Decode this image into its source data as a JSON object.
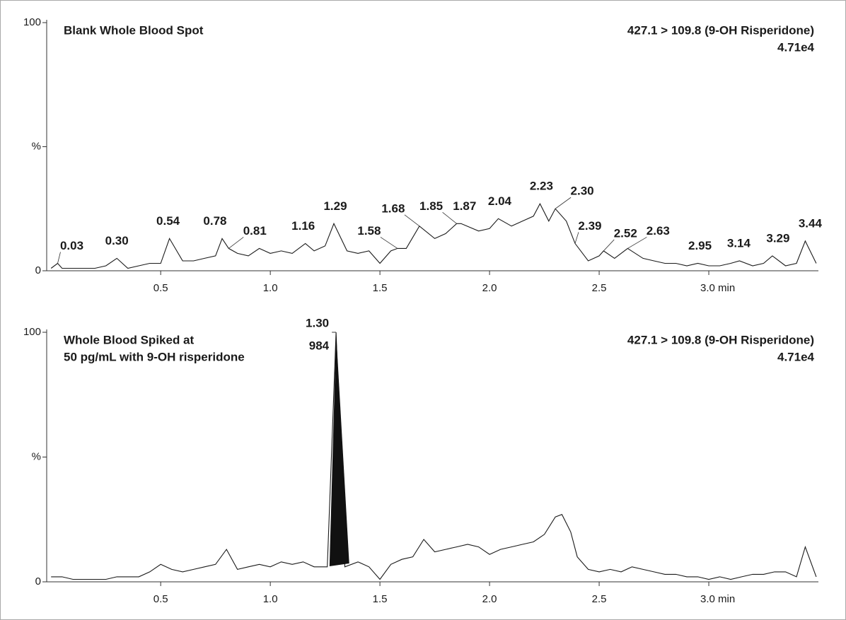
{
  "chart_data": [
    {
      "type": "line",
      "title": [
        "Blank Whole Blood Spot"
      ],
      "transition": "427.1 > 109.8 (9-OH Risperidone)",
      "intensity": "4.71e4",
      "xlim": [
        -0.02,
        3.5
      ],
      "ylim": [
        0,
        100
      ],
      "xticks": [
        0.5,
        {
          "value": 1,
          "label": "1.0"
        },
        1.5,
        {
          "value": 2,
          "label": "2.0"
        },
        2.5,
        {
          "value": 3,
          "label": "3.0 min"
        }
      ],
      "yticks": [
        0,
        {
          "value": 50,
          "label": "%"
        },
        100
      ],
      "color": "#1a1a1a",
      "label_color": "#1f7a99",
      "x": [
        0,
        0.03,
        0.05,
        0.1,
        0.15,
        0.2,
        0.25,
        0.3,
        0.35,
        0.4,
        0.45,
        0.5,
        0.54,
        0.6,
        0.65,
        0.7,
        0.75,
        0.78,
        0.81,
        0.85,
        0.9,
        0.95,
        1,
        1.05,
        1.1,
        1.16,
        1.2,
        1.25,
        1.29,
        1.35,
        1.4,
        1.45,
        1.5,
        1.55,
        1.58,
        1.62,
        1.68,
        1.75,
        1.8,
        1.85,
        1.87,
        1.95,
        2,
        2.04,
        2.1,
        2.15,
        2.2,
        2.23,
        2.27,
        2.3,
        2.35,
        2.39,
        2.45,
        2.5,
        2.52,
        2.57,
        2.63,
        2.7,
        2.75,
        2.8,
        2.85,
        2.9,
        2.95,
        3,
        3.05,
        3.1,
        3.14,
        3.2,
        3.25,
        3.29,
        3.35,
        3.4,
        3.44,
        3.49
      ],
      "values": [
        1,
        3,
        1,
        1,
        1,
        1,
        2,
        5,
        1,
        2,
        3,
        3,
        13,
        4,
        4,
        5,
        6,
        13,
        9,
        7,
        6,
        9,
        7,
        8,
        7,
        11,
        8,
        10,
        19,
        8,
        7,
        8,
        3,
        8,
        9,
        9,
        18,
        13,
        15,
        19,
        19,
        16,
        17,
        21,
        18,
        20,
        22,
        27,
        20,
        25,
        20,
        11,
        4,
        6,
        8,
        5,
        9,
        5,
        4,
        3,
        3,
        2,
        3,
        2,
        2,
        3,
        4,
        2,
        3,
        6,
        2,
        3,
        12,
        3
      ],
      "peaks": [
        {
          "label": "0.03",
          "rt": 0.03,
          "y": 3
        },
        {
          "label": "0.30",
          "rt": 0.3,
          "y": 5
        },
        {
          "label": "0.54",
          "rt": 0.54,
          "y": 13
        },
        {
          "label": "0.78",
          "rt": 0.78,
          "y": 13
        },
        {
          "label": "0.81",
          "rt": 0.81,
          "y": 9
        },
        {
          "label": "1.16",
          "rt": 1.16,
          "y": 11
        },
        {
          "label": "1.29",
          "rt": 1.29,
          "y": 19
        },
        {
          "label": "1.58",
          "rt": 1.58,
          "y": 9
        },
        {
          "label": "1.68",
          "rt": 1.68,
          "y": 18
        },
        {
          "label": "1.85",
          "rt": 1.85,
          "y": 19
        },
        {
          "label": "1.87",
          "rt": 1.87,
          "y": 19
        },
        {
          "label": "2.04",
          "rt": 2.04,
          "y": 21
        },
        {
          "label": "2.23",
          "rt": 2.23,
          "y": 27
        },
        {
          "label": "2.30",
          "rt": 2.3,
          "y": 25
        },
        {
          "label": "2.39",
          "rt": 2.39,
          "y": 11
        },
        {
          "label": "2.52",
          "rt": 2.52,
          "y": 8
        },
        {
          "label": "2.63",
          "rt": 2.63,
          "y": 9
        },
        {
          "label": "2.95",
          "rt": 2.95,
          "y": 3
        },
        {
          "label": "3.14",
          "rt": 3.14,
          "y": 4
        },
        {
          "label": "3.29",
          "rt": 3.29,
          "y": 6
        },
        {
          "label": "3.44",
          "rt": 3.44,
          "y": 12
        }
      ]
    },
    {
      "type": "line",
      "title": [
        "Whole Blood Spiked at",
        "50 pg/mL with 9-OH risperidone"
      ],
      "transition": "427.1 > 109.8 (9-OH Risperidone)",
      "intensity": "4.71e4",
      "xlim": [
        -0.02,
        3.5
      ],
      "ylim": [
        0,
        100
      ],
      "xticks": [
        0.5,
        {
          "value": 1,
          "label": "1.0"
        },
        1.5,
        {
          "value": 2,
          "label": "2.0"
        },
        2.5,
        {
          "value": 3,
          "label": "3.0 min"
        }
      ],
      "yticks": [
        0,
        {
          "value": 50,
          "label": "%"
        },
        100
      ],
      "color": "#1a1a1a",
      "label_color": "#1f7a99",
      "x": [
        0,
        0.05,
        0.1,
        0.15,
        0.2,
        0.25,
        0.3,
        0.35,
        0.4,
        0.45,
        0.5,
        0.55,
        0.6,
        0.65,
        0.7,
        0.75,
        0.8,
        0.85,
        0.9,
        0.95,
        1,
        1.05,
        1.1,
        1.15,
        1.2,
        1.26,
        1.3,
        1.34,
        1.4,
        1.45,
        1.5,
        1.55,
        1.6,
        1.65,
        1.7,
        1.75,
        1.8,
        1.85,
        1.9,
        1.95,
        2,
        2.05,
        2.1,
        2.15,
        2.2,
        2.25,
        2.3,
        2.33,
        2.37,
        2.4,
        2.45,
        2.5,
        2.55,
        2.6,
        2.65,
        2.7,
        2.75,
        2.8,
        2.85,
        2.9,
        2.95,
        3,
        3.05,
        3.1,
        3.15,
        3.2,
        3.25,
        3.3,
        3.35,
        3.4,
        3.44,
        3.49
      ],
      "values": [
        2,
        2,
        1,
        1,
        1,
        1,
        2,
        2,
        2,
        4,
        7,
        5,
        4,
        5,
        6,
        7,
        13,
        5,
        6,
        7,
        6,
        8,
        7,
        8,
        6,
        6,
        100,
        6,
        8,
        6,
        1,
        7,
        9,
        10,
        17,
        12,
        13,
        14,
        15,
        14,
        11,
        13,
        14,
        15,
        16,
        19,
        26,
        27,
        20,
        10,
        5,
        4,
        5,
        4,
        6,
        5,
        4,
        3,
        3,
        2,
        2,
        1,
        2,
        1,
        2,
        3,
        3,
        4,
        4,
        2,
        14,
        2
      ],
      "peaks": [
        {
          "label": "1.30",
          "rt": 1.3,
          "y": 100,
          "area": 984
        }
      ]
    }
  ]
}
